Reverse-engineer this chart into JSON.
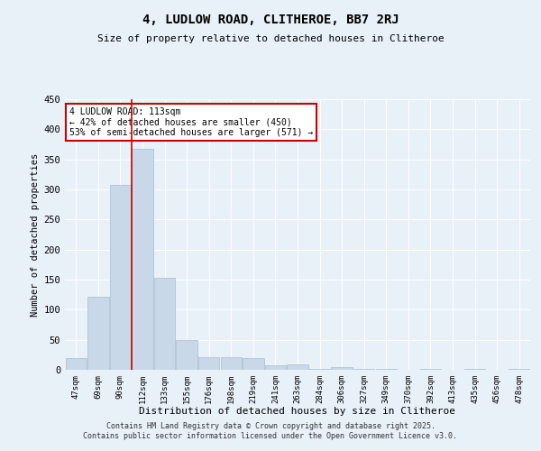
{
  "title": "4, LUDLOW ROAD, CLITHEROE, BB7 2RJ",
  "subtitle": "Size of property relative to detached houses in Clitheroe",
  "xlabel": "Distribution of detached houses by size in Clitheroe",
  "ylabel": "Number of detached properties",
  "bar_color": "#c8d8e8",
  "bar_edge_color": "#a8bece",
  "background_color": "#e8f0f8",
  "grid_color": "#ffffff",
  "categories": [
    "47sqm",
    "69sqm",
    "90sqm",
    "112sqm",
    "133sqm",
    "155sqm",
    "176sqm",
    "198sqm",
    "219sqm",
    "241sqm",
    "263sqm",
    "284sqm",
    "306sqm",
    "327sqm",
    "349sqm",
    "370sqm",
    "392sqm",
    "413sqm",
    "435sqm",
    "456sqm",
    "478sqm"
  ],
  "values": [
    20,
    122,
    307,
    367,
    153,
    49,
    21,
    21,
    20,
    8,
    9,
    2,
    5,
    1,
    1,
    0,
    1,
    0,
    1,
    0,
    2
  ],
  "ylim": [
    0,
    450
  ],
  "yticks": [
    0,
    50,
    100,
    150,
    200,
    250,
    300,
    350,
    400,
    450
  ],
  "red_line_index": 3,
  "annotation_text": "4 LUDLOW ROAD: 113sqm\n← 42% of detached houses are smaller (450)\n53% of semi-detached houses are larger (571) →",
  "annotation_box_color": "#ffffff",
  "annotation_box_edge": "#cc0000",
  "red_line_color": "#cc0000",
  "footer": "Contains HM Land Registry data © Crown copyright and database right 2025.\nContains public sector information licensed under the Open Government Licence v3.0.",
  "figsize": [
    6.0,
    5.0
  ],
  "dpi": 100
}
